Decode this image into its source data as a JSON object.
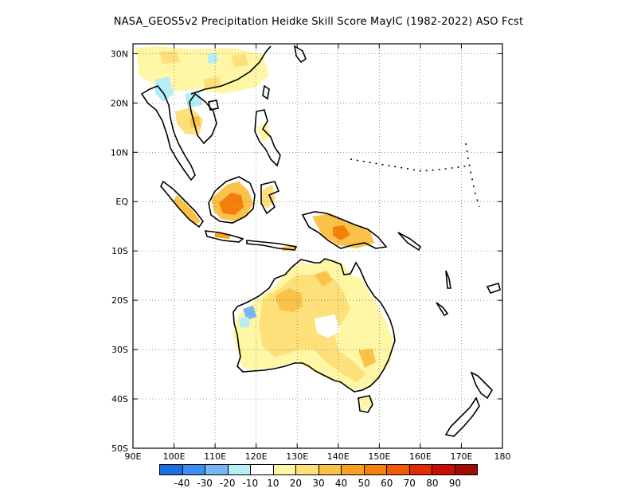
{
  "title": "NASA_GEOS5v2  Precipitation Heidke Skill Score MayIC (1982-2022) ASO Fcst",
  "lat_ticks": [
    "30N",
    "20N",
    "10N",
    "EQ",
    "10S",
    "20S",
    "30S",
    "40S",
    "50S"
  ],
  "lon_ticks": [
    "90E",
    "100E",
    "110E",
    "120E",
    "130E",
    "140E",
    "150E",
    "160E",
    "170E",
    "180"
  ],
  "map_extent": {
    "lon": [
      90,
      180
    ],
    "lat": [
      -50,
      32
    ]
  },
  "colorbar": {
    "colors": [
      "#1f6fe0",
      "#3c8ff0",
      "#77b6f5",
      "#b4eef7",
      "#ffffff",
      "#fff6a6",
      "#fde07a",
      "#fbc24a",
      "#f9a21f",
      "#f67f0c",
      "#f05a06",
      "#e02c04",
      "#c80f03",
      "#a00a00"
    ],
    "labels": [
      "-40",
      "-30",
      "-20",
      "-10",
      "10",
      "20",
      "30",
      "40",
      "50",
      "60",
      "70",
      "80",
      "90"
    ]
  },
  "regions": [
    {
      "name": "borneo-skill",
      "level": 40,
      "color": "#f9a21f"
    },
    {
      "name": "new-guinea-skill",
      "level": 40,
      "color": "#f9a21f"
    },
    {
      "name": "australia-skill",
      "level": 20,
      "color": "#fde07a"
    },
    {
      "name": "western-australia-negative",
      "level": -20,
      "color": "#77b6f5"
    },
    {
      "name": "indochina-negative",
      "level": -10,
      "color": "#b4eef7"
    }
  ]
}
